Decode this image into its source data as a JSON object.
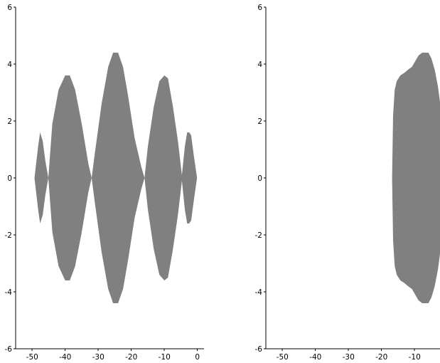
{
  "chart_data": [
    {
      "type": "area",
      "title": "",
      "xlabel": "",
      "ylabel": "",
      "xlim": [
        -55,
        2
      ],
      "ylim": [
        -6,
        6
      ],
      "x_ticks": [
        -50,
        -40,
        -30,
        -20,
        -10,
        0
      ],
      "y_ticks": [
        -6,
        -4,
        -2,
        0,
        2,
        4,
        6
      ],
      "fill_color": "#808080",
      "grid": false,
      "series": [
        {
          "shape": "symmetric lobes about y=0",
          "x": [
            -49.3,
            -48.2,
            -47.6,
            -46.8,
            -46.0,
            -45.1,
            -43.9,
            -42.0,
            -40.0,
            -38.6,
            -37.0,
            -35.0,
            -33.0,
            -32.0,
            -31.0,
            -29.0,
            -27.0,
            -25.5,
            -24.0,
            -22.5,
            -21.0,
            -19.0,
            -17.0,
            -16.0,
            -15.0,
            -13.2,
            -11.5,
            -10.0,
            -8.9,
            -7.4,
            -5.9,
            -4.7,
            -3.8,
            -3.1,
            -2.5,
            -1.9,
            -1.1,
            -0.1
          ],
          "y": [
            0.0,
            1.1,
            1.6,
            1.3,
            0.6,
            0.0,
            1.9,
            3.1,
            3.6,
            3.6,
            3.1,
            1.9,
            0.5,
            0.0,
            0.9,
            2.6,
            3.9,
            4.4,
            4.4,
            3.9,
            2.9,
            1.4,
            0.4,
            0.0,
            1.1,
            2.5,
            3.4,
            3.6,
            3.5,
            2.5,
            1.3,
            0.1,
            1.1,
            1.6,
            1.6,
            1.5,
            0.8,
            0.0
          ]
        }
      ]
    },
    {
      "type": "area",
      "title": "",
      "xlabel": "",
      "ylabel": "",
      "xlim": [
        -55,
        2
      ],
      "ylim": [
        -6,
        6
      ],
      "x_ticks": [
        -50,
        -40,
        -30,
        -20,
        -10,
        0
      ],
      "y_ticks": [
        -6,
        -4,
        -2,
        0,
        2,
        4,
        6
      ],
      "fill_color": "#808080",
      "grid": false,
      "series": [
        {
          "shape": "single region, symmetric about y=0, clipped at right edge",
          "x": [
            -16.8,
            -16.5,
            -16.0,
            -15.4,
            -14.3,
            -13.0,
            -12.0,
            -10.8,
            -9.8,
            -8.8,
            -7.7,
            -6.8,
            -5.8,
            -4.9,
            -3.9,
            -2.9,
            -2.1,
            -1.3,
            -0.4,
            0.5,
            1.2
          ],
          "y": [
            0.0,
            2.2,
            3.1,
            3.4,
            3.6,
            3.7,
            3.8,
            3.9,
            4.1,
            4.3,
            4.4,
            4.4,
            4.4,
            4.2,
            3.8,
            3.2,
            2.5,
            1.9,
            1.4,
            1.0,
            0.8
          ]
        }
      ]
    }
  ]
}
